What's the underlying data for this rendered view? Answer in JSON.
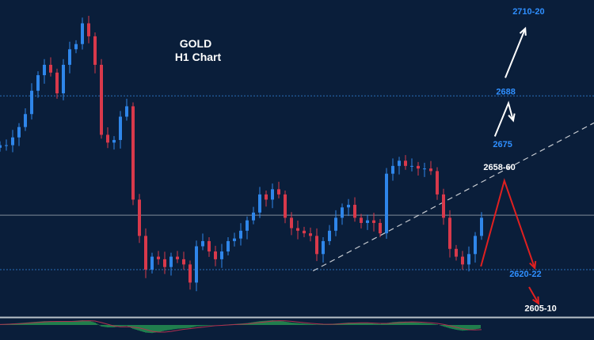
{
  "chart_data": {
    "type": "candlestick",
    "title": "GOLD",
    "subtitle": "H1 Chart",
    "xlim": [
      0,
      93.75
    ],
    "ylim": [
      2603,
      2725
    ],
    "grid": false,
    "colors": {
      "background": "#0a1e3a",
      "up": "#2f86ea",
      "down": "#d8394b",
      "level_label": "#2f8fff",
      "target_label": "#ffffff",
      "bear_arrow": "#e02020",
      "bull_arrow": "#ffffff",
      "macd_hist": "#2fbf5a",
      "macd_signal": "#b03050"
    },
    "closes": [
      2669,
      2669,
      2672,
      2676,
      2681,
      2690,
      2696,
      2700,
      2697,
      2689,
      2700,
      2706,
      2708,
      2716,
      2711,
      2700,
      2673,
      2670,
      2671,
      2680,
      2684,
      2648,
      2634,
      2621,
      2626,
      2625,
      2622,
      2626,
      2625,
      2623,
      2616,
      2630,
      2632,
      2628,
      2625,
      2628,
      2632,
      2633,
      2636,
      2640,
      2643,
      2650,
      2648,
      2652,
      2650,
      2641,
      2637,
      2636,
      2635,
      2634,
      2627,
      2632,
      2636,
      2641,
      2645,
      2646,
      2641,
      2639,
      2640,
      2639,
      2635,
      2658,
      2661,
      2663,
      2661,
      2661,
      2660,
      2660,
      2659,
      2650,
      2641,
      2629,
      2626,
      2623,
      2627,
      2634,
      2641
    ],
    "macd_histogram": [
      0.1,
      0.2,
      0.3,
      0.4,
      0.5,
      0.6,
      0.7,
      0.8,
      0.8,
      0.7,
      0.7,
      0.8,
      0.9,
      1.0,
      0.9,
      0.5,
      -0.3,
      -0.5,
      -0.5,
      -0.3,
      -0.2,
      -0.8,
      -1.2,
      -1.6,
      -1.7,
      -1.5,
      -1.2,
      -1.0,
      -0.8,
      -0.7,
      -0.6,
      -0.3,
      -0.2,
      -0.1,
      0.0,
      0.0,
      0.1,
      0.2,
      0.3,
      0.4,
      0.6,
      0.8,
      0.9,
      1.0,
      0.9,
      0.7,
      0.5,
      0.4,
      0.3,
      0.2,
      0.1,
      0.1,
      0.2,
      0.3,
      0.4,
      0.5,
      0.5,
      0.4,
      0.4,
      0.3,
      0.2,
      0.4,
      0.6,
      0.7,
      0.7,
      0.6,
      0.5,
      0.4,
      0.3,
      0.1,
      -0.3,
      -0.7,
      -1.0,
      -1.2,
      -1.1,
      -0.9,
      -0.7
    ],
    "levels": [
      {
        "price": 2688,
        "style": "dotted",
        "color": "#2a6fb8"
      },
      {
        "price": 2621,
        "style": "dotted",
        "color": "#2a6fb8"
      },
      {
        "price": 2642,
        "style": "solid",
        "color": "#7f8c99"
      }
    ],
    "trendline": [
      [
        49.4,
        2620.5
      ],
      [
        93.75,
        2677.6
      ]
    ],
    "arrows": [
      {
        "name": "bear-zigzag",
        "color": "#e02020",
        "points": [
          [
            75.9,
            2622.2
          ],
          [
            79.6,
            2655.3
          ],
          [
            84.4,
            2621.6
          ]
        ]
      },
      {
        "name": "bear-extension",
        "color": "#e02020",
        "points": [
          [
            83.5,
            2614.3
          ],
          [
            85,
            2607.9
          ]
        ]
      },
      {
        "name": "bull-retest",
        "color": "#ffffff",
        "points": [
          [
            78.1,
            2672.4
          ],
          [
            80.25,
            2685.2
          ],
          [
            81,
            2678.5
          ]
        ]
      },
      {
        "name": "bull-target",
        "color": "#ffffff",
        "points": [
          [
            79.75,
            2695
          ],
          [
            82.9,
            2714
          ]
        ]
      }
    ],
    "annotations": [
      {
        "text": "2710-20",
        "bar": 80.9,
        "price": 2719.5,
        "color": "#2f8fff"
      },
      {
        "text": "2688",
        "bar": 78.3,
        "price": 2688.5,
        "color": "#2f8fff"
      },
      {
        "text": "2675",
        "bar": 77.8,
        "price": 2668.3,
        "color": "#2f8fff"
      },
      {
        "text": "2658-60",
        "bar": 76.3,
        "price": 2659.5,
        "color": "#ffffff"
      },
      {
        "text": "2620-22",
        "bar": 80.4,
        "price": 2618.3,
        "color": "#2f8fff"
      },
      {
        "text": "2605-10",
        "bar": 82.8,
        "price": 2605,
        "color": "#ffffff"
      }
    ]
  }
}
